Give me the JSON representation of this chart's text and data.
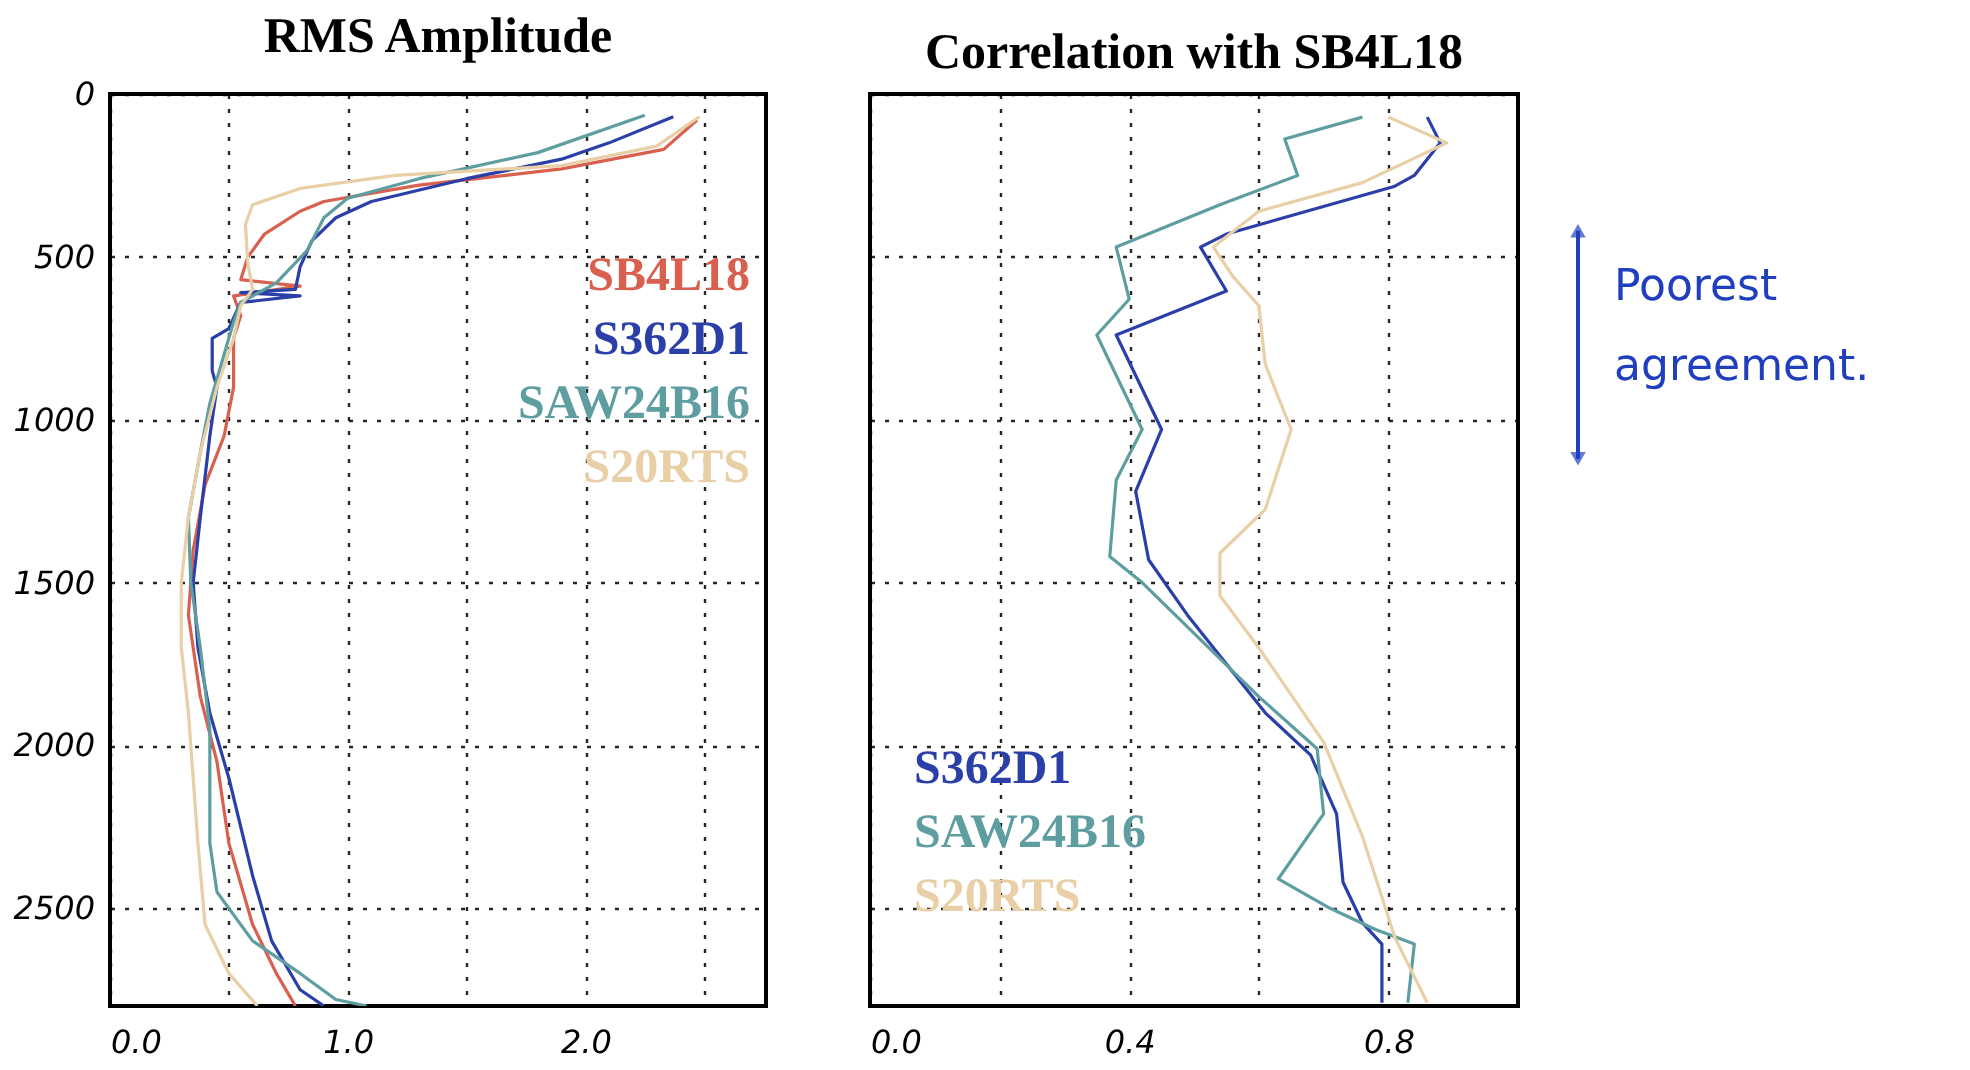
{
  "chart_data": [
    {
      "type": "line",
      "title": "RMS Amplitude",
      "xlim": [
        0,
        2.76
      ],
      "xticks": [
        {
          "value": 0,
          "label": "0.0"
        },
        {
          "value": 0.5,
          "label": null
        },
        {
          "value": 1,
          "label": "1.0"
        },
        {
          "value": 1.5,
          "label": null
        },
        {
          "value": 2,
          "label": "2.0"
        },
        {
          "value": 2.5,
          "label": null
        }
      ],
      "ylim": [
        2800,
        0
      ],
      "yticks": [
        0,
        500,
        1000,
        1500,
        2000,
        2500
      ],
      "grid": true,
      "legend": "top right",
      "series": [
        {
          "name": "SB4L18",
          "color": "#d9604f",
          "x": [
            2.47,
            2.33,
            1.9,
            1.3,
            0.9,
            0.8,
            0.65,
            0.58,
            0.55,
            0.8,
            0.52,
            0.55,
            0.52,
            0.52,
            0.48,
            0.4,
            0.35,
            0.33,
            0.38,
            0.45,
            0.5,
            0.6,
            0.7,
            0.78
          ],
          "values": [
            80,
            170,
            230,
            280,
            330,
            360,
            430,
            500,
            570,
            590,
            620,
            680,
            750,
            900,
            1050,
            1200,
            1400,
            1600,
            1850,
            2050,
            2300,
            2550,
            2700,
            2800
          ]
        },
        {
          "name": "S362D1",
          "color": "#2a3fa8",
          "x": [
            2.37,
            2.1,
            1.9,
            1.5,
            1.1,
            0.95,
            0.85,
            0.8,
            0.78,
            0.55,
            0.8,
            0.55,
            0.5,
            0.43,
            0.43,
            0.45,
            0.42,
            0.38,
            0.35,
            0.37,
            0.42,
            0.5,
            0.6,
            0.68,
            0.8,
            0.9
          ],
          "values": [
            70,
            150,
            200,
            260,
            330,
            380,
            450,
            530,
            600,
            610,
            620,
            640,
            720,
            750,
            850,
            900,
            1050,
            1300,
            1500,
            1700,
            1900,
            2100,
            2400,
            2600,
            2750,
            2800
          ]
        },
        {
          "name": "SAW24B16",
          "color": "#5f9ea0",
          "x": [
            2.25,
            1.8,
            1.3,
            1.0,
            0.9,
            0.83,
            0.7,
            0.55,
            0.52,
            0.48,
            0.42,
            0.38,
            0.33,
            0.34,
            0.38,
            0.42,
            0.42,
            0.42,
            0.45,
            0.6,
            0.8,
            0.95,
            1.08
          ],
          "values": [
            65,
            180,
            260,
            320,
            380,
            480,
            580,
            640,
            700,
            800,
            950,
            1100,
            1300,
            1500,
            1700,
            1950,
            2100,
            2300,
            2450,
            2600,
            2700,
            2780,
            2800
          ]
        },
        {
          "name": "S20RTS",
          "color": "#e8cfa6",
          "x": [
            2.48,
            2.3,
            1.9,
            1.2,
            0.8,
            0.6,
            0.57,
            0.58,
            0.6,
            0.55,
            0.52,
            0.45,
            0.38,
            0.33,
            0.3,
            0.3,
            0.33,
            0.35,
            0.37,
            0.4,
            0.5,
            0.62
          ],
          "values": [
            70,
            160,
            220,
            250,
            290,
            340,
            400,
            520,
            600,
            650,
            750,
            900,
            1100,
            1300,
            1500,
            1700,
            1900,
            2100,
            2300,
            2550,
            2700,
            2800
          ]
        }
      ]
    },
    {
      "type": "line",
      "title": "Correlation with SB4L18",
      "xlim": [
        0,
        1.0
      ],
      "xticks": [
        {
          "value": 0,
          "label": "0.0"
        },
        {
          "value": 0.2,
          "label": null
        },
        {
          "value": 0.4,
          "label": "0.4"
        },
        {
          "value": 0.6,
          "label": null
        },
        {
          "value": 0.8,
          "label": "0.8"
        }
      ],
      "ylim": [
        2800,
        0
      ],
      "yticks": [
        0,
        500,
        1000,
        1500,
        2000,
        2500
      ],
      "tick_labels": "x",
      "grid": true,
      "legend": "bottom left",
      "annotations": [
        "Poorest agreement."
      ],
      "series": [
        {
          "name": "S362D1",
          "color": "#2a3fa8",
          "x": [
            0.86,
            0.88,
            0.84,
            0.81,
            0.55,
            0.51,
            0.55,
            0.38,
            0.45,
            0.41,
            0.43,
            0.49,
            0.61,
            0.68,
            0.72,
            0.73,
            0.76,
            0.79,
            0.79
          ],
          "values": [
            71,
            150,
            250,
            283,
            430,
            470,
            605,
            740,
            1030,
            1220,
            1430,
            1600,
            1900,
            2030,
            2210,
            2420,
            2545,
            2610,
            2790
          ]
        },
        {
          "name": "SAW24B16",
          "color": "#5f9ea0",
          "x": [
            0.76,
            0.64,
            0.66,
            0.54,
            0.38,
            0.4,
            0.35,
            0.42,
            0.38,
            0.37,
            0.42,
            0.6,
            0.69,
            0.7,
            0.63,
            0.71,
            0.78,
            0.84,
            0.83
          ],
          "values": [
            71,
            138,
            250,
            340,
            470,
            630,
            740,
            1030,
            1185,
            1420,
            1500,
            1850,
            2010,
            2210,
            2410,
            2500,
            2565,
            2610,
            2790
          ]
        },
        {
          "name": "S20RTS",
          "color": "#e8cfa6",
          "x": [
            0.8,
            0.89,
            0.76,
            0.6,
            0.53,
            0.56,
            0.6,
            0.61,
            0.65,
            0.61,
            0.54,
            0.54,
            0.6,
            0.7,
            0.76,
            0.81,
            0.86
          ],
          "values": [
            71,
            150,
            272,
            360,
            470,
            560,
            650,
            830,
            1030,
            1275,
            1410,
            1540,
            1700,
            1990,
            2280,
            2590,
            2790
          ]
        }
      ]
    }
  ]
}
